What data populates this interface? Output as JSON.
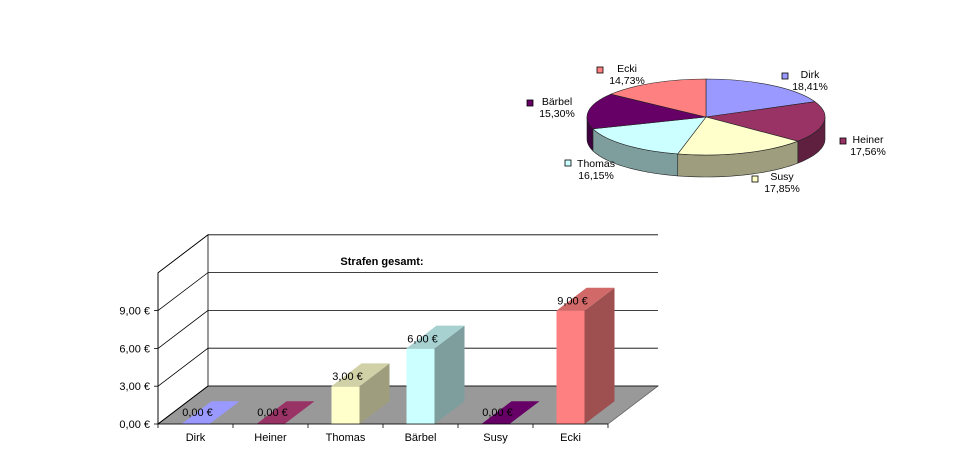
{
  "chart_data": [
    {
      "type": "pie",
      "title": "",
      "labels": [
        "Dirk",
        "Heiner",
        "Susy",
        "Thomas",
        "Bärbel",
        "Ecki"
      ],
      "values": [
        18.41,
        17.56,
        17.85,
        16.15,
        15.3,
        14.73
      ],
      "value_labels": [
        "18,41%",
        "17,56%",
        "17,85%",
        "16,15%",
        "15,30%",
        "14,73%"
      ],
      "colors": [
        "#9999ff",
        "#993366",
        "#ffffcc",
        "#ccffff",
        "#660066",
        "#ff8080"
      ]
    },
    {
      "type": "bar",
      "title": "Strafen gesamt:",
      "categories": [
        "Dirk",
        "Heiner",
        "Thomas",
        "Bärbel",
        "Susy",
        "Ecki"
      ],
      "values": [
        0,
        0,
        3,
        6,
        0,
        9
      ],
      "value_labels": [
        "0,00 €",
        "0,00 €",
        "3,00 €",
        "6,00 €",
        "0,00 €",
        "9,00 €"
      ],
      "colors": [
        "#9999ff",
        "#993366",
        "#ffffcc",
        "#ccffff",
        "#660066",
        "#ff8080"
      ],
      "ylim": [
        0,
        12
      ],
      "yticks": [
        0,
        3,
        6,
        9
      ],
      "ytick_labels": [
        "0,00 €",
        "3,00 €",
        "6,00 €",
        "9,00 €"
      ],
      "xlabel": "",
      "ylabel": ""
    }
  ]
}
